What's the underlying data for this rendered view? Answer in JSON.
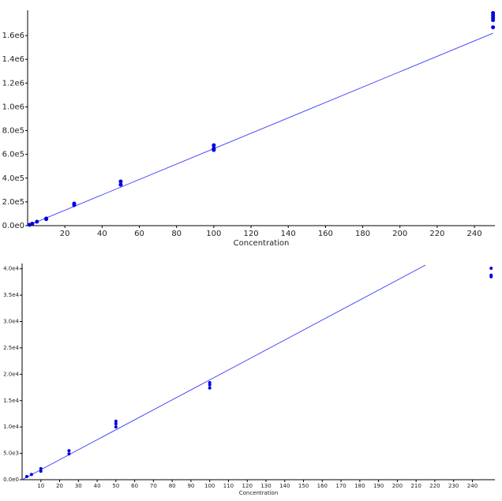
{
  "chart_data": [
    {
      "type": "scatter",
      "x_label": "Concentration",
      "xlim": [
        0,
        251
      ],
      "ylim": [
        0,
        1800000
      ],
      "xticks": [
        20,
        40,
        60,
        80,
        100,
        120,
        140,
        160,
        180,
        200,
        220,
        240
      ],
      "yticks": [
        {
          "value": 0,
          "label": "0.0e0"
        },
        {
          "value": 200000,
          "label": "2.0e5"
        },
        {
          "value": 400000,
          "label": "4.0e5"
        },
        {
          "value": 600000,
          "label": "6.0e5"
        },
        {
          "value": 800000,
          "label": "8.0e5"
        },
        {
          "value": 1000000,
          "label": "1.0e6"
        },
        {
          "value": 1200000,
          "label": "1.2e6"
        },
        {
          "value": 1400000,
          "label": "1.4e6"
        },
        {
          "value": 1600000,
          "label": "1.6e6"
        }
      ],
      "points": {
        "color": "#0000e0",
        "x": [
          1,
          2.5,
          5,
          10,
          10,
          25,
          25,
          50,
          50,
          100,
          100,
          100,
          250,
          250,
          250,
          250,
          250
        ],
        "y": [
          7000,
          17000,
          33000,
          60000,
          55000,
          186000,
          173000,
          372000,
          345000,
          677000,
          650000,
          637000,
          1790000,
          1770000,
          1750000,
          1730000,
          1670000
        ]
      },
      "fit": {
        "color": "#3a3aff",
        "x": [
          0,
          250
        ],
        "y": [
          0,
          1620000
        ]
      }
    },
    {
      "type": "scatter",
      "x_label": "Concentration",
      "xlim": [
        0,
        252
      ],
      "ylim": [
        0,
        40700
      ],
      "xticks": [
        10,
        20,
        30,
        40,
        50,
        60,
        70,
        80,
        90,
        100,
        110,
        120,
        130,
        140,
        150,
        160,
        170,
        180,
        190,
        200,
        210,
        220,
        230,
        240
      ],
      "yticks": [
        {
          "value": 0,
          "label": "0.0e0"
        },
        {
          "value": 5000,
          "label": "5.0e3"
        },
        {
          "value": 10000,
          "label": "1.0e4"
        },
        {
          "value": 15000,
          "label": "1.5e4"
        },
        {
          "value": 20000,
          "label": "2.0e4"
        },
        {
          "value": 25000,
          "label": "2.5e4"
        },
        {
          "value": 30000,
          "label": "3.0e4"
        },
        {
          "value": 35000,
          "label": "3.5e4"
        },
        {
          "value": 40000,
          "label": "4.0e4"
        }
      ],
      "points": {
        "color": "#0000e0",
        "x": [
          2.5,
          5,
          10,
          10,
          25,
          25,
          50,
          50,
          50,
          100,
          100,
          100,
          250,
          250,
          250
        ],
        "y": [
          600,
          1000,
          2100,
          1600,
          5500,
          4900,
          11100,
          10600,
          10000,
          18400,
          18000,
          17400,
          40100,
          38800,
          38500
        ]
      },
      "fit": {
        "color": "#3a3aff",
        "x": [
          0,
          215
        ],
        "y": [
          0,
          40700
        ]
      }
    }
  ]
}
